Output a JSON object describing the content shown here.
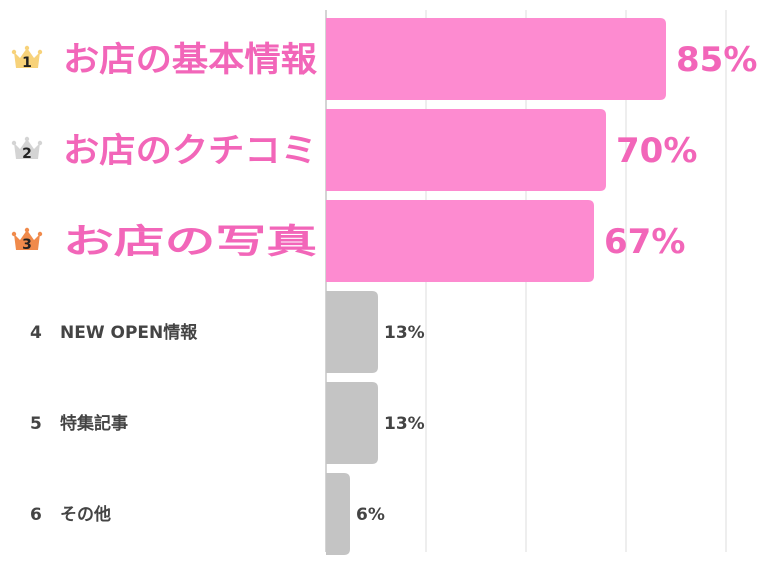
{
  "chart_data": {
    "type": "bar",
    "orientation": "horizontal",
    "categories": [
      "お店の基本情報",
      "お店のクチコミ",
      "お店の写真",
      "NEW OPEN情報",
      "特集記事",
      "その他"
    ],
    "ranks": [
      "1",
      "2",
      "3",
      "4",
      "5",
      "6"
    ],
    "values": [
      85,
      70,
      67,
      13,
      13,
      6
    ],
    "value_labels": [
      "85%",
      "70%",
      "67%",
      "13%",
      "13%",
      "6%"
    ],
    "xlim": [
      0,
      100
    ],
    "grid": true,
    "highlight_count": 3
  },
  "colors": {
    "highlight_bar": "#fd8bd0",
    "highlight_text": "#f266b9",
    "other_bar": "#c4c4c4",
    "other_text": "#444444",
    "grid": "#dddddd",
    "axis": "#aaaaaa",
    "crowns": [
      "#f7d27a",
      "#d4d4d4",
      "#f08a4b"
    ]
  },
  "icons": [
    "crown-gold-icon",
    "crown-silver-icon",
    "crown-bronze-icon"
  ]
}
